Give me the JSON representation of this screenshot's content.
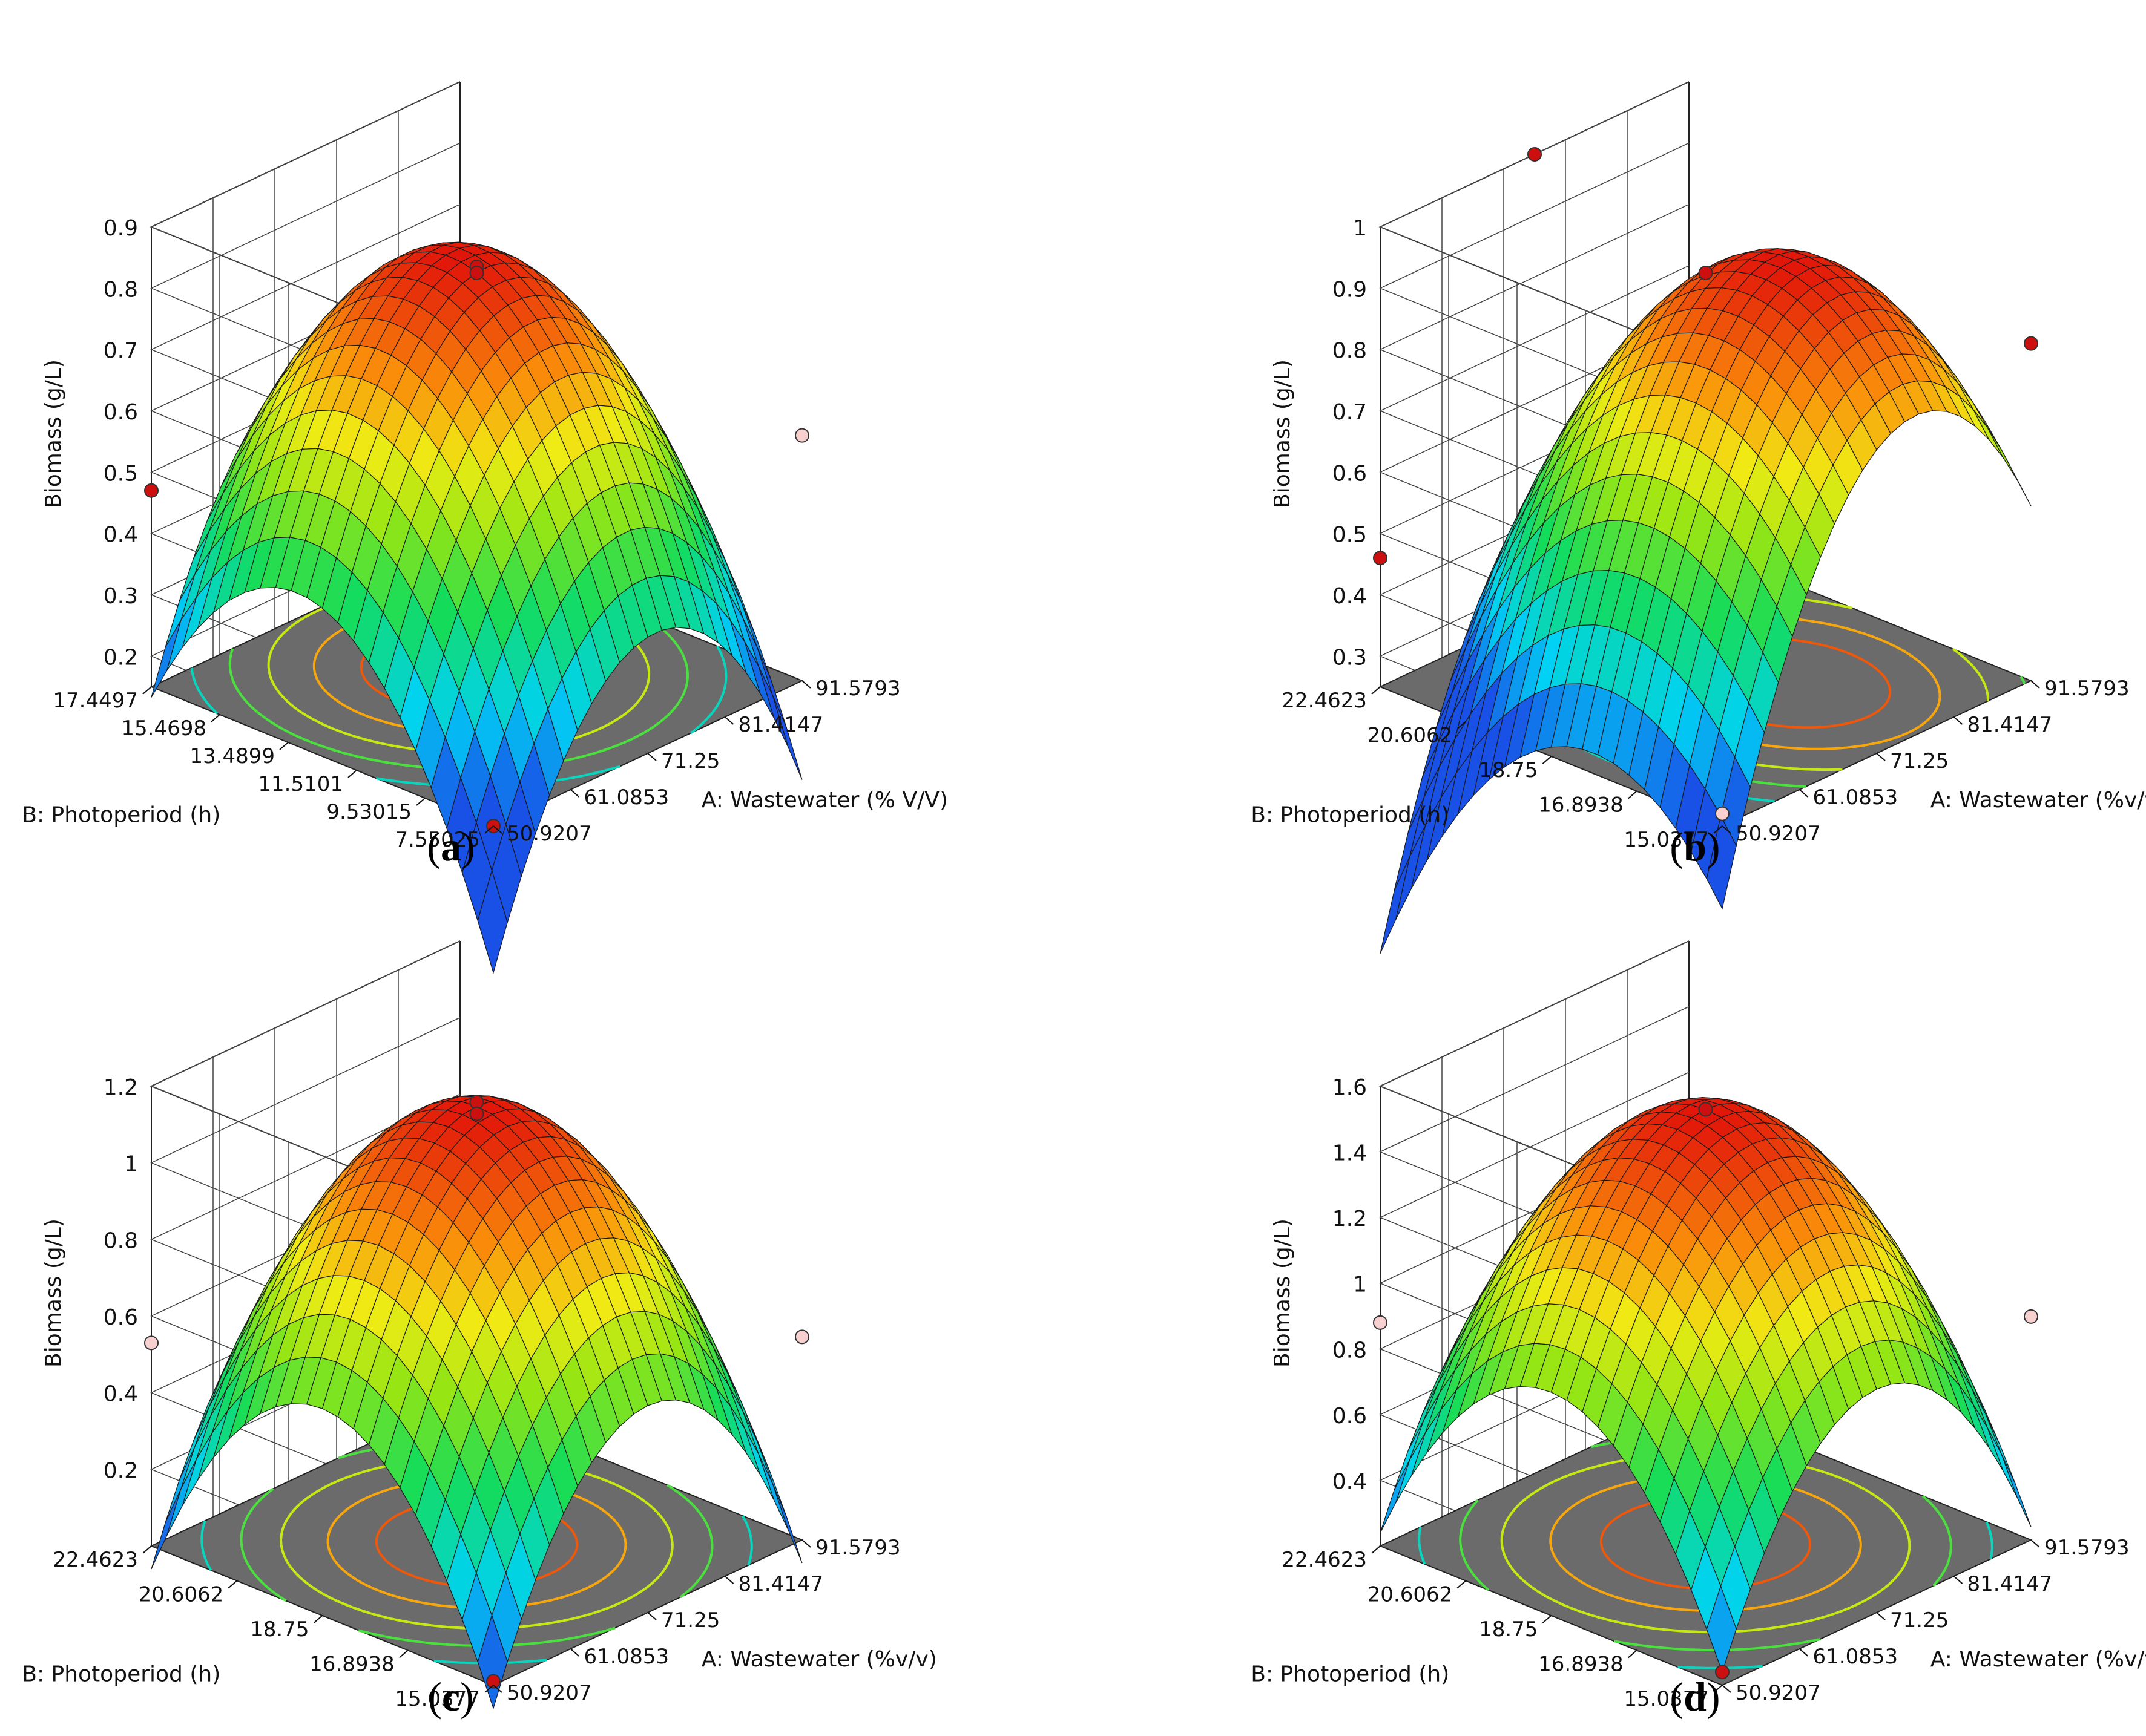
{
  "chart_data": [
    {
      "type": "surface3d",
      "panel_label": "a",
      "zlabel": "Biomass (g/L)",
      "xlabel": "A: Wastewater (% V/V)",
      "ylabel": "B: Photoperiod (h)",
      "x_ticks": [
        "50.9207",
        "61.0853",
        "71.25",
        "81.4147",
        "91.5793"
      ],
      "y_ticks": [
        "7.55025",
        "9.53015",
        "11.5101",
        "13.4899",
        "15.4698",
        "17.4497"
      ],
      "z_ticks": [
        "0.2",
        "0.3",
        "0.4",
        "0.5",
        "0.6",
        "0.7",
        "0.8",
        "0.9"
      ],
      "xlim": [
        50.9207,
        91.5793
      ],
      "ylim": [
        7.55025,
        17.4497
      ],
      "zlim": [
        0.15,
        0.9
      ],
      "model": {
        "peak": 0.83,
        "xpeak": 0.05,
        "ypeak": 0.15,
        "cx": 0.39,
        "cy": 0.37,
        "cxy": 0.0
      },
      "points": [
        {
          "x": 71.25,
          "y": 12.5,
          "z": 0.83,
          "color": "#cc1010"
        },
        {
          "x": 71.25,
          "y": 12.5,
          "z": 0.82,
          "color": "#cc1010"
        },
        {
          "x": 50.9207,
          "y": 7.55025,
          "z": 0.15,
          "color": "#cc1010"
        },
        {
          "x": 50.9207,
          "y": 17.4497,
          "z": 0.47,
          "color": "#cc1010"
        },
        {
          "x": 91.5793,
          "y": 7.55025,
          "z": 0.55,
          "color": "#f8d0d0"
        }
      ]
    },
    {
      "type": "surface3d",
      "panel_label": "b",
      "zlabel": "Biomass (g/L)",
      "xlabel": "A: Wastewater  (%v/v)",
      "ylabel": "B: Photoperiod (h)",
      "x_ticks": [
        "50.9207",
        "61.0853",
        "71.25",
        "81.4147",
        "91.5793"
      ],
      "y_ticks": [
        "15.0377",
        "16.8938",
        "18.75",
        "20.6062",
        "22.4623"
      ],
      "z_ticks": [
        "0.3",
        "0.4",
        "0.5",
        "0.6",
        "0.7",
        "0.8",
        "0.9",
        "1"
      ],
      "xlim": [
        50.9207,
        91.5793
      ],
      "ylim": [
        15.0377,
        22.4623
      ],
      "zlim": [
        0.25,
        1.0
      ],
      "model": {
        "peak": 0.94,
        "xpeak": 0.25,
        "ypeak": -0.25,
        "cx": 0.42,
        "cy": 0.3,
        "cxy": 0.0
      },
      "points": [
        {
          "x": 71.25,
          "y": 18.75,
          "z": 0.92,
          "color": "#cc1010"
        },
        {
          "x": 71.25,
          "y": 22.4623,
          "z": 1.0,
          "color": "#cc1010"
        },
        {
          "x": 50.9207,
          "y": 15.0377,
          "z": 0.27,
          "color": "#f8d0d0"
        },
        {
          "x": 50.9207,
          "y": 22.4623,
          "z": 0.46,
          "color": "#cc1010"
        },
        {
          "x": 91.5793,
          "y": 15.0377,
          "z": 0.8,
          "color": "#cc1010"
        }
      ]
    },
    {
      "type": "surface3d",
      "panel_label": "c",
      "zlabel": "Biomass (g/L)",
      "xlabel": "A: Wastewater  (%v/v)",
      "ylabel": "B: Photoperiod (h)",
      "x_ticks": [
        "50.9207",
        "61.0853",
        "71.25",
        "81.4147",
        "91.5793"
      ],
      "y_ticks": [
        "15.0377",
        "16.8938",
        "18.75",
        "20.6062",
        "22.4623"
      ],
      "z_ticks": [
        "0.2",
        "0.4",
        "0.6",
        "0.8",
        "1",
        "1.2"
      ],
      "xlim": [
        50.9207,
        91.5793
      ],
      "ylim": [
        15.0377,
        22.4623
      ],
      "zlim": [
        0.0,
        1.2
      ],
      "model": {
        "peak": 1.14,
        "xpeak": 0.0,
        "ypeak": 0.0,
        "cx": 0.6,
        "cy": 0.6,
        "cxy": 0.0
      },
      "points": [
        {
          "x": 71.25,
          "y": 18.75,
          "z": 1.15,
          "color": "#cc1010"
        },
        {
          "x": 71.25,
          "y": 18.75,
          "z": 1.12,
          "color": "#cc1010"
        },
        {
          "x": 50.9207,
          "y": 15.0377,
          "z": 0.01,
          "color": "#cc1010"
        },
        {
          "x": 50.9207,
          "y": 22.4623,
          "z": 0.53,
          "color": "#f8d0d0"
        },
        {
          "x": 91.5793,
          "y": 15.0377,
          "z": 0.53,
          "color": "#f8d0d0"
        }
      ]
    },
    {
      "type": "surface3d",
      "panel_label": "d",
      "zlabel": "Biomass (g/L)",
      "xlabel": "A: Wastewater  (%v/v)",
      "ylabel": "B: Photoperiod (h)",
      "x_ticks": [
        "50.9207",
        "61.0853",
        "71.25",
        "81.4147",
        "91.5793"
      ],
      "y_ticks": [
        "15.0377",
        "16.8938",
        "18.75",
        "20.6062",
        "22.4623"
      ],
      "z_ticks": [
        "0.4",
        "0.6",
        "0.8",
        "1",
        "1.2",
        "1.4",
        "1.6"
      ],
      "xlim": [
        50.9207,
        91.5793
      ],
      "ylim": [
        15.0377,
        22.4623
      ],
      "zlim": [
        0.2,
        1.6
      ],
      "model": {
        "peak": 1.52,
        "xpeak": 0.0,
        "ypeak": 0.0,
        "cx": 0.64,
        "cy": 0.64,
        "cxy": 0.0
      },
      "points": [
        {
          "x": 71.25,
          "y": 18.75,
          "z": 1.52,
          "color": "#cc1010"
        },
        {
          "x": 50.9207,
          "y": 15.0377,
          "z": 0.24,
          "color": "#cc1010"
        },
        {
          "x": 50.9207,
          "y": 22.4623,
          "z": 0.88,
          "color": "#f8d0d0"
        },
        {
          "x": 91.5793,
          "y": 15.0377,
          "z": 0.88,
          "color": "#f8d0d0"
        }
      ]
    }
  ]
}
